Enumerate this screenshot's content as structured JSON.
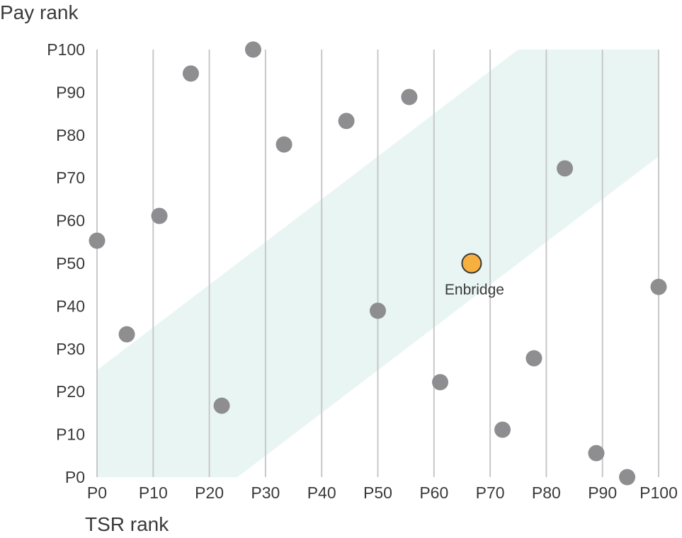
{
  "chart_data": {
    "type": "scatter",
    "title": "",
    "xlabel": "TSR rank",
    "ylabel": "Pay rank",
    "xlim": [
      0,
      100
    ],
    "ylim": [
      0,
      100
    ],
    "x_ticks": [
      {
        "value": 0,
        "label": "P0"
      },
      {
        "value": 10,
        "label": "P10"
      },
      {
        "value": 20,
        "label": "P20"
      },
      {
        "value": 30,
        "label": "P30"
      },
      {
        "value": 40,
        "label": "P40"
      },
      {
        "value": 50,
        "label": "P50"
      },
      {
        "value": 60,
        "label": "P60"
      },
      {
        "value": 70,
        "label": "P70"
      },
      {
        "value": 80,
        "label": "P80"
      },
      {
        "value": 90,
        "label": "P90"
      },
      {
        "value": 100,
        "label": "P100"
      }
    ],
    "y_ticks": [
      {
        "value": 0,
        "label": "P0"
      },
      {
        "value": 10,
        "label": "P10"
      },
      {
        "value": 20,
        "label": "P20"
      },
      {
        "value": 30,
        "label": "P30"
      },
      {
        "value": 40,
        "label": "P40"
      },
      {
        "value": 50,
        "label": "P50"
      },
      {
        "value": 60,
        "label": "P60"
      },
      {
        "value": 70,
        "label": "P70"
      },
      {
        "value": 80,
        "label": "P80"
      },
      {
        "value": 90,
        "label": "P90"
      },
      {
        "value": 100,
        "label": "P100"
      }
    ],
    "grid": {
      "vertical": true,
      "horizontal": false
    },
    "alignment_band": {
      "description_offset": 25,
      "lower_edge": [
        [
          25,
          0
        ],
        [
          100,
          75
        ]
      ],
      "upper_edge": [
        [
          0,
          25
        ],
        [
          75,
          100
        ]
      ]
    },
    "series": [
      {
        "points": [
          {
            "x": 0,
            "y": 55.3
          },
          {
            "x": 5.3,
            "y": 33.4
          },
          {
            "x": 11.1,
            "y": 61.1
          },
          {
            "x": 16.7,
            "y": 94.4
          },
          {
            "x": 22.2,
            "y": 16.7
          },
          {
            "x": 27.8,
            "y": 100
          },
          {
            "x": 33.3,
            "y": 77.8
          },
          {
            "x": 44.4,
            "y": 83.3
          },
          {
            "x": 50.0,
            "y": 38.9
          },
          {
            "x": 55.6,
            "y": 88.9
          },
          {
            "x": 61.1,
            "y": 22.2
          },
          {
            "x": 72.2,
            "y": 11.1
          },
          {
            "x": 77.8,
            "y": 27.8
          },
          {
            "x": 83.3,
            "y": 72.2
          },
          {
            "x": 88.9,
            "y": 5.6
          },
          {
            "x": 94.4,
            "y": 0
          },
          {
            "x": 100,
            "y": 44.5
          }
        ],
        "color": "#8e8e90"
      },
      {
        "points": [
          {
            "x": 66.7,
            "y": 50.0,
            "label": "Enbridge"
          }
        ],
        "color": "#f7b040",
        "stroke": "#3a3a3a"
      }
    ],
    "colors": {
      "gridline": "#c8c8c8",
      "band": "#e8f5f2",
      "text": "#3a3a3a"
    }
  }
}
